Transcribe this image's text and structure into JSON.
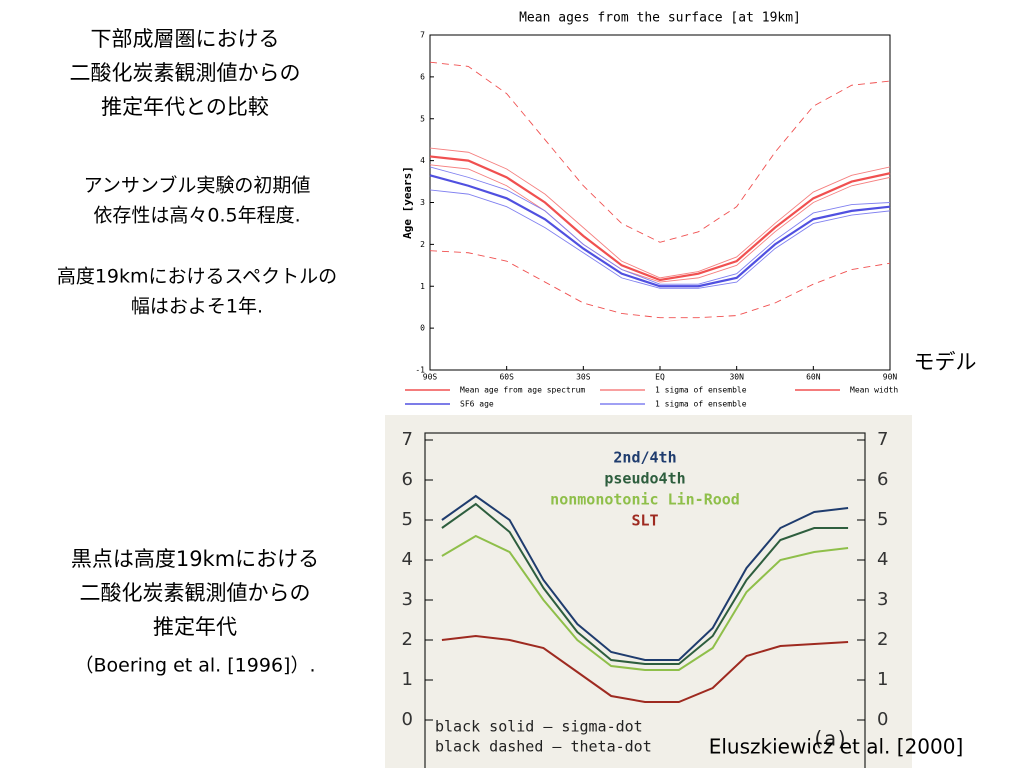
{
  "slide": {
    "heading": [
      "下部成層圏における",
      "二酸化炭素観測値からの",
      "推定年代との比較"
    ],
    "note1": [
      "アンサンブル実験の初期値",
      "依存性は高々0.5年程度."
    ],
    "note2": [
      "高度19kmにおけるスペクトルの",
      "幅はおよそ1年."
    ],
    "model_label": "モデル",
    "note3": [
      "黒点は高度19kmにおける",
      "二酸化炭素観測値からの",
      "推定年代",
      "（Boering et al. [1996]）."
    ],
    "citation": "Eluszkiewicz et al. [2000]"
  },
  "chart_data": [
    {
      "type": "line",
      "title": "Mean ages from the surface [at 19km]",
      "ylabel": "Age [years]",
      "x": [
        -90,
        -75,
        -60,
        -45,
        -30,
        -15,
        0,
        15,
        30,
        45,
        60,
        75,
        90
      ],
      "xlim": [
        -90,
        90
      ],
      "xticks": [
        {
          "value": -90,
          "label": "90S"
        },
        {
          "value": -60,
          "label": "60S"
        },
        {
          "value": -30,
          "label": "30S"
        },
        {
          "value": 0,
          "label": "EQ"
        },
        {
          "value": 30,
          "label": "30N"
        },
        {
          "value": 60,
          "label": "60N"
        },
        {
          "value": 90,
          "label": "90N"
        }
      ],
      "ylim": [
        -1,
        7
      ],
      "yticks": [
        -1,
        0,
        1,
        2,
        3,
        4,
        5,
        6,
        7
      ],
      "series": [
        {
          "name": "Mean age from age spectrum",
          "color": "#f05050",
          "values": [
            4.1,
            4.0,
            3.6,
            3.0,
            2.2,
            1.5,
            1.15,
            1.3,
            1.6,
            2.4,
            3.1,
            3.5,
            3.7
          ]
        },
        {
          "name": "1 sigma of ensemble",
          "color": "#f58080",
          "upper": [
            4.3,
            4.2,
            3.8,
            3.2,
            2.4,
            1.6,
            1.2,
            1.35,
            1.7,
            2.5,
            3.25,
            3.65,
            3.85
          ],
          "lower": [
            3.9,
            3.8,
            3.4,
            2.8,
            2.0,
            1.4,
            1.1,
            1.2,
            1.5,
            2.3,
            3.0,
            3.4,
            3.6
          ]
        },
        {
          "name": "Mean width",
          "color": "#f05050",
          "dashed": true,
          "upper": [
            6.35,
            6.25,
            5.6,
            4.5,
            3.4,
            2.5,
            2.05,
            2.3,
            2.9,
            4.2,
            5.3,
            5.8,
            5.9
          ],
          "lower": [
            1.85,
            1.8,
            1.6,
            1.1,
            0.6,
            0.35,
            0.25,
            0.25,
            0.3,
            0.6,
            1.05,
            1.4,
            1.55
          ]
        },
        {
          "name": "SF6 age",
          "color": "#5050e0",
          "values": [
            3.65,
            3.4,
            3.1,
            2.6,
            1.9,
            1.3,
            1.0,
            1.0,
            1.2,
            2.0,
            2.6,
            2.8,
            2.9
          ]
        },
        {
          "name": "1 sigma of ensemble",
          "color": "#8080f0",
          "upper": [
            3.85,
            3.6,
            3.3,
            2.8,
            2.0,
            1.4,
            1.05,
            1.05,
            1.3,
            2.1,
            2.75,
            2.95,
            3.0
          ],
          "lower": [
            3.3,
            3.2,
            2.9,
            2.4,
            1.8,
            1.2,
            0.95,
            0.95,
            1.1,
            1.9,
            2.5,
            2.7,
            2.8
          ]
        }
      ]
    },
    {
      "type": "line",
      "categories": [
        null,
        null,
        null,
        null,
        null,
        null,
        null,
        null,
        null,
        null,
        null,
        null,
        null
      ],
      "ylim": [
        -1.2,
        7.25
      ],
      "yticks": [
        0,
        1,
        2,
        3,
        4,
        5,
        6,
        7
      ],
      "series": [
        {
          "name": "2nd/4th",
          "color": "#1f3c6e",
          "values": [
            5.0,
            5.6,
            5.0,
            3.5,
            2.4,
            1.7,
            1.5,
            1.5,
            2.3,
            3.8,
            4.8,
            5.2,
            5.3
          ]
        },
        {
          "name": "pseudo4th",
          "color": "#2e5e3e",
          "values": [
            4.8,
            5.4,
            4.7,
            3.3,
            2.2,
            1.5,
            1.4,
            1.4,
            2.1,
            3.5,
            4.5,
            4.8,
            4.8
          ]
        },
        {
          "name": "nonmonotonic Lin-Rood",
          "color": "#8fbf4a",
          "values": [
            4.1,
            4.6,
            4.2,
            3.0,
            2.0,
            1.35,
            1.25,
            1.25,
            1.8,
            3.2,
            4.0,
            4.2,
            4.3
          ]
        },
        {
          "name": "SLT",
          "color": "#9e2a20",
          "values": [
            2.0,
            2.1,
            2.0,
            1.8,
            1.2,
            0.6,
            0.45,
            0.45,
            0.8,
            1.6,
            1.85,
            1.9,
            1.95
          ]
        }
      ],
      "annotations": [
        "black solid – sigma-dot",
        "black dashed – theta-dot",
        "(a)"
      ]
    }
  ]
}
